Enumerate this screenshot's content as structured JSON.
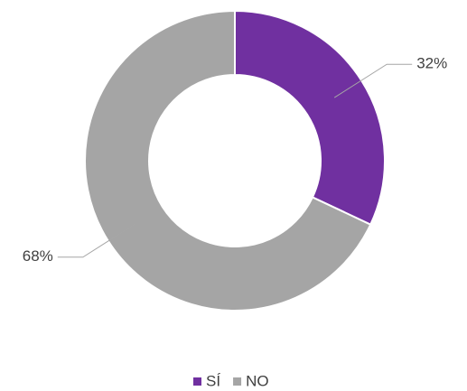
{
  "chart_data": {
    "type": "donut",
    "categories": [
      "SÍ",
      "NO"
    ],
    "values": [
      32,
      68
    ],
    "value_labels": [
      "32%",
      "68%"
    ],
    "colors": [
      "#7030A0",
      "#A5A5A5"
    ],
    "legend": "bottom"
  }
}
